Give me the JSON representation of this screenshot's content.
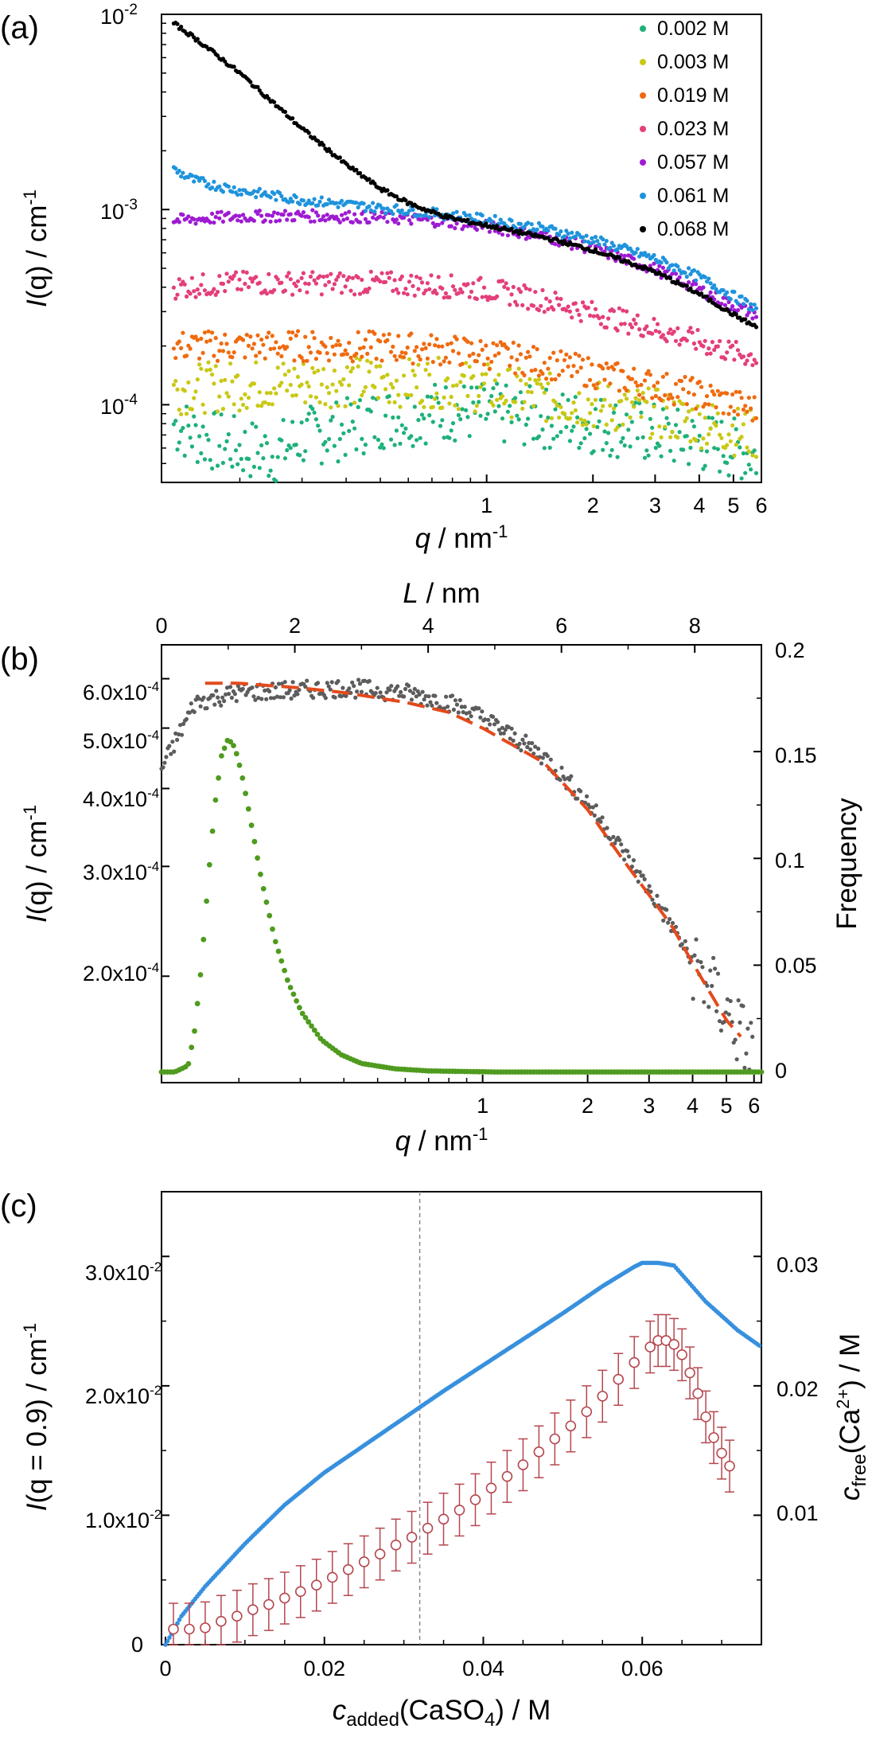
{
  "colors": {
    "0.002": "#1db17a",
    "0.003": "#c9c815",
    "0.019": "#ef6a0f",
    "0.023": "#e43e7b",
    "0.057": "#9e1bd2",
    "0.061": "#1f93dc",
    "0.068": "#000000",
    "raw_b": "#5c5c5c",
    "fit_b": "#e34a1c",
    "freq_b": "#4f9b1f",
    "intensity_c": "#3790de",
    "cfree_c": "#b5474f"
  },
  "panel_a": {
    "label": "(a)",
    "xlabel_var": "q",
    "xlabel_unit": " / nm",
    "xlabel_exp": "-1",
    "ylabel_var": "I",
    "ylabel_arg": "(q)",
    "ylabel_unit": " / cm",
    "ylabel_exp": "-1",
    "x_tick_labels": [
      "1",
      "2",
      "3",
      "4",
      "5",
      "6"
    ],
    "y_tick_labels": [
      {
        "base": "10",
        "exp": "-2"
      },
      {
        "base": "10",
        "exp": "-3"
      },
      {
        "base": "10",
        "exp": "-4"
      }
    ]
  },
  "panel_b": {
    "label": "(b)",
    "xlabel_var": "q",
    "xlabel_unit": " / nm",
    "xlabel_exp": "-1",
    "top_xlabel_var": "L",
    "top_xlabel_unit": " / nm",
    "ylabel_var": "I",
    "ylabel_arg": "(q)",
    "ylabel_unit": " / cm",
    "ylabel_exp": "-1",
    "y2label": "Frequency",
    "x_tick_labels": [
      "1",
      "2",
      "3",
      "4",
      "5",
      "6"
    ],
    "top_tick_labels": [
      "0",
      "2",
      "4",
      "6",
      "8"
    ],
    "y_tick_labels": [
      {
        "base": "6.0x10",
        "exp": "-4"
      },
      {
        "base": "5.0x10",
        "exp": "-4"
      },
      {
        "base": "4.0x10",
        "exp": "-4"
      },
      {
        "base": "3.0x10",
        "exp": "-4"
      },
      {
        "base": "2.0x10",
        "exp": "-4"
      }
    ],
    "y2_tick_labels": [
      "0",
      "0.05",
      "0.1",
      "0.15",
      "0.2"
    ]
  },
  "panel_c": {
    "label": "(c)",
    "xlabel_var": "c",
    "xlabel_sub": "added",
    "xlabel_rest": "(CaSO",
    "xlabel_sub2": "4",
    "xlabel_unit": ") / M",
    "ylabel_var": "I",
    "ylabel_arg": "(q = 0.9)",
    "ylabel_unit": " / cm",
    "ylabel_exp": "-1",
    "y2label_var": "c",
    "y2label_sub": "free",
    "y2label_rest": "(Ca",
    "y2label_sup": "2+",
    "y2label_unit": ") / M",
    "x_tick_labels": [
      "0",
      "0.02",
      "0.04",
      "0.06"
    ],
    "y_tick_labels": [
      {
        "base": "0",
        "exp": ""
      },
      {
        "base": "1.0x10",
        "exp": "-2"
      },
      {
        "base": "2.0x10",
        "exp": "-2"
      },
      {
        "base": "3.0x10",
        "exp": "-2"
      }
    ],
    "y2_tick_labels": [
      "0.01",
      "0.02",
      "0.03"
    ]
  },
  "chart_data": [
    {
      "type": "scatter",
      "panel": "(a)",
      "xlabel": "q / nm-1",
      "ylabel": "I(q) / cm-1",
      "xscale": "log",
      "yscale": "log",
      "xlim": [
        0.12,
        6
      ],
      "ylim": [
        4e-05,
        0.01
      ],
      "legend_position": "top-right",
      "series": [
        {
          "name": "0.002 M",
          "color": "#1db17a",
          "x": [
            0.13,
            0.15,
            0.17,
            0.2,
            0.25,
            0.3,
            0.4,
            0.5,
            0.6,
            0.7,
            0.8,
            1.0,
            1.3,
            1.6,
            2.0,
            2.5,
            3.0,
            3.5,
            4.0,
            4.5,
            5.0,
            5.5,
            5.8
          ],
          "y": [
            8e-05,
            7e-05,
            6.5e-05,
            6e-05,
            5.6e-05,
            6.8e-05,
            7.5e-05,
            8.5e-05,
            8.8e-05,
            9.2e-05,
            9.3e-05,
            9e-05,
            8.7e-05,
            8.4e-05,
            8e-05,
            7.5e-05,
            7.1e-05,
            6.7e-05,
            6.4e-05,
            6.2e-05,
            6e-05,
            5.7e-05,
            5.5e-05
          ]
        },
        {
          "name": "0.003 M",
          "color": "#c9c815",
          "x": [
            0.13,
            0.2,
            0.3,
            0.5,
            0.7,
            1.0,
            1.5,
            2.0,
            3.0,
            4.0,
            5.0,
            5.8
          ],
          "y": [
            0.00012,
            0.000125,
            0.00013,
            0.000132,
            0.00013,
            0.000122,
            0.000108,
            0.0001,
            9e-05,
            8.1e-05,
            7.4e-05,
            7e-05
          ]
        },
        {
          "name": "0.019 M",
          "color": "#ef6a0f",
          "x": [
            0.13,
            0.2,
            0.3,
            0.5,
            0.7,
            1.0,
            1.5,
            2.0,
            3.0,
            4.0,
            5.0,
            5.8
          ],
          "y": [
            0.0002,
            0.0002,
            0.0002,
            0.000198,
            0.000193,
            0.000183,
            0.000162,
            0.000146,
            0.000126,
            0.000113,
            0.000101,
            9.4e-05
          ]
        },
        {
          "name": "0.023 M",
          "color": "#e43e7b",
          "x": [
            0.13,
            0.2,
            0.3,
            0.5,
            0.7,
            1.0,
            1.5,
            2.0,
            3.0,
            4.0,
            5.0,
            5.8
          ],
          "y": [
            0.0004,
            0.00042,
            0.00042,
            0.00042,
            0.00041,
            0.00039,
            0.00034,
            0.000295,
            0.000245,
            0.00021,
            0.000185,
            0.000175
          ]
        },
        {
          "name": "0.057 M",
          "color": "#9e1bd2",
          "x": [
            0.13,
            0.2,
            0.3,
            0.5,
            0.7,
            1.0,
            1.5,
            2.0,
            3.0,
            4.0,
            5.0,
            5.8
          ],
          "y": [
            0.00088,
            0.00092,
            0.00093,
            0.00091,
            0.00088,
            0.00082,
            0.00072,
            0.00063,
            0.000495,
            0.00039,
            0.00032,
            0.00029
          ]
        },
        {
          "name": "0.061 M",
          "color": "#1f93dc",
          "x": [
            0.13,
            0.15,
            0.2,
            0.3,
            0.5,
            0.7,
            1.0,
            1.5,
            2.0,
            3.0,
            4.0,
            5.0,
            5.8
          ],
          "y": [
            0.0016,
            0.0014,
            0.00125,
            0.00112,
            0.00102,
            0.00096,
            0.00089,
            0.00079,
            0.0007,
            0.00056,
            0.00045,
            0.00036,
            0.00031
          ]
        },
        {
          "name": "0.068 M",
          "color": "#000000",
          "x": [
            0.13,
            0.15,
            0.2,
            0.25,
            0.3,
            0.4,
            0.5,
            0.6,
            0.7,
            0.8,
            1.0,
            1.5,
            2.0,
            3.0,
            4.0,
            5.0,
            5.8
          ],
          "y": [
            0.009,
            0.0075,
            0.005,
            0.0035,
            0.0026,
            0.0017,
            0.00128,
            0.00108,
            0.00097,
            0.0009,
            0.00083,
            0.00071,
            0.00062,
            0.00048,
            0.00037,
            0.00029,
            0.00025
          ]
        }
      ]
    },
    {
      "type": "scatter",
      "panel": "(b)",
      "xlabel": "q / nm-1",
      "ylabel": "I(q) / cm-1",
      "x2label": "L / nm",
      "y2label": "Frequency",
      "xscale": "log",
      "yscale": "log",
      "xlim": [
        0.12,
        6.3
      ],
      "ylim": [
        0.000135,
        0.00068
      ],
      "x2lim": [
        0,
        9
      ],
      "y2lim": [
        -0.005,
        0.2
      ],
      "series": [
        {
          "name": "",
          "role": "measured I(q)",
          "color": "#5c5c5c",
          "x": [
            0.12,
            0.15,
            0.2,
            0.3,
            0.4,
            0.6,
            0.8,
            1.0,
            1.5,
            2.0,
            2.5,
            3.0,
            3.5,
            4.0,
            5.0,
            6.0
          ],
          "y": [
            0.00043,
            0.00055,
            0.00057,
            0.000575,
            0.00058,
            0.00057,
            0.00055,
            0.00052,
            0.00045,
            0.00038,
            0.00032,
            0.000275,
            0.00024,
            0.00021,
            0.000175,
            0.00015
          ]
        },
        {
          "name": "",
          "role": "fit",
          "color": "#e34a1c",
          "style": "dashed",
          "x": [
            0.16,
            0.2,
            0.3,
            0.4,
            0.6,
            0.8,
            1.0,
            1.5,
            2.0,
            2.5,
            3.0,
            3.5,
            4.0,
            5.0,
            5.5
          ],
          "y": [
            0.00059,
            0.00059,
            0.00058,
            0.00057,
            0.00055,
            0.00053,
            0.0005,
            0.00044,
            0.00037,
            0.00031,
            0.00027,
            0.00024,
            0.00021,
            0.00017,
            0.00016
          ]
        },
        {
          "name": "",
          "role": "length distribution (top L axis, right Frequency axis)",
          "color": "#4f9b1f",
          "axis_x": "L / nm",
          "axis_y": "Frequency",
          "x": [
            0.0,
            0.2,
            0.4,
            0.5,
            0.6,
            0.7,
            0.8,
            0.9,
            1.0,
            1.1,
            1.2,
            1.3,
            1.4,
            1.5,
            1.7,
            1.9,
            2.1,
            2.4,
            2.7,
            3.0,
            3.5,
            4.0,
            5.0,
            6.0,
            7.0,
            8.0,
            9.0
          ],
          "y": [
            0.0,
            0.0,
            0.003,
            0.02,
            0.05,
            0.09,
            0.125,
            0.148,
            0.156,
            0.152,
            0.14,
            0.124,
            0.107,
            0.09,
            0.062,
            0.042,
            0.028,
            0.015,
            0.008,
            0.004,
            0.0015,
            0.0005,
            0.0,
            0.0,
            0.0,
            0.0,
            0.0
          ]
        }
      ]
    },
    {
      "type": "scatter",
      "panel": "(c)",
      "xlabel": "c_added(CaSO4) / M",
      "ylabel": "I(q = 0.9) / cm-1",
      "y2label": "c_free(Ca2+) / M",
      "xlim": [
        -0.0005,
        0.075
      ],
      "ylim": [
        0,
        0.035
      ],
      "y2lim": [
        0,
        0.035
      ],
      "vertical_line_x": 0.032,
      "series": [
        {
          "name": "",
          "role": "I(q = 0.9)",
          "color": "#3790de",
          "x": [
            0.0,
            0.002,
            0.005,
            0.01,
            0.015,
            0.02,
            0.025,
            0.03,
            0.035,
            0.04,
            0.045,
            0.05,
            0.055,
            0.059,
            0.06,
            0.062,
            0.064,
            0.068,
            0.072,
            0.075
          ],
          "y": [
            0.0,
            0.0022,
            0.0045,
            0.0078,
            0.0108,
            0.0133,
            0.0154,
            0.0175,
            0.0196,
            0.0216,
            0.0236,
            0.0256,
            0.0277,
            0.0292,
            0.0295,
            0.0295,
            0.0293,
            0.0265,
            0.0243,
            0.023
          ]
        },
        {
          "name": "",
          "role": "c_free(Ca2+)",
          "color": "#b5474f",
          "marker": "open circle with error bars",
          "x": [
            0.001,
            0.003,
            0.005,
            0.007,
            0.009,
            0.011,
            0.013,
            0.015,
            0.017,
            0.019,
            0.021,
            0.023,
            0.025,
            0.027,
            0.029,
            0.031,
            0.033,
            0.035,
            0.037,
            0.039,
            0.041,
            0.043,
            0.045,
            0.047,
            0.049,
            0.051,
            0.053,
            0.055,
            0.057,
            0.059,
            0.061,
            0.062,
            0.063,
            0.064,
            0.065,
            0.066,
            0.067,
            0.068,
            0.069,
            0.07,
            0.071
          ],
          "y": [
            0.0012,
            0.0012,
            0.0013,
            0.0018,
            0.0022,
            0.0027,
            0.0031,
            0.0036,
            0.0041,
            0.0046,
            0.0052,
            0.0058,
            0.0064,
            0.007,
            0.0077,
            0.0083,
            0.009,
            0.0097,
            0.0104,
            0.0112,
            0.0121,
            0.013,
            0.0139,
            0.0149,
            0.0159,
            0.0169,
            0.018,
            0.0192,
            0.0205,
            0.0218,
            0.023,
            0.0235,
            0.0235,
            0.0232,
            0.0224,
            0.021,
            0.0194,
            0.0176,
            0.016,
            0.0148,
            0.0138
          ],
          "error": 0.002
        }
      ]
    }
  ]
}
